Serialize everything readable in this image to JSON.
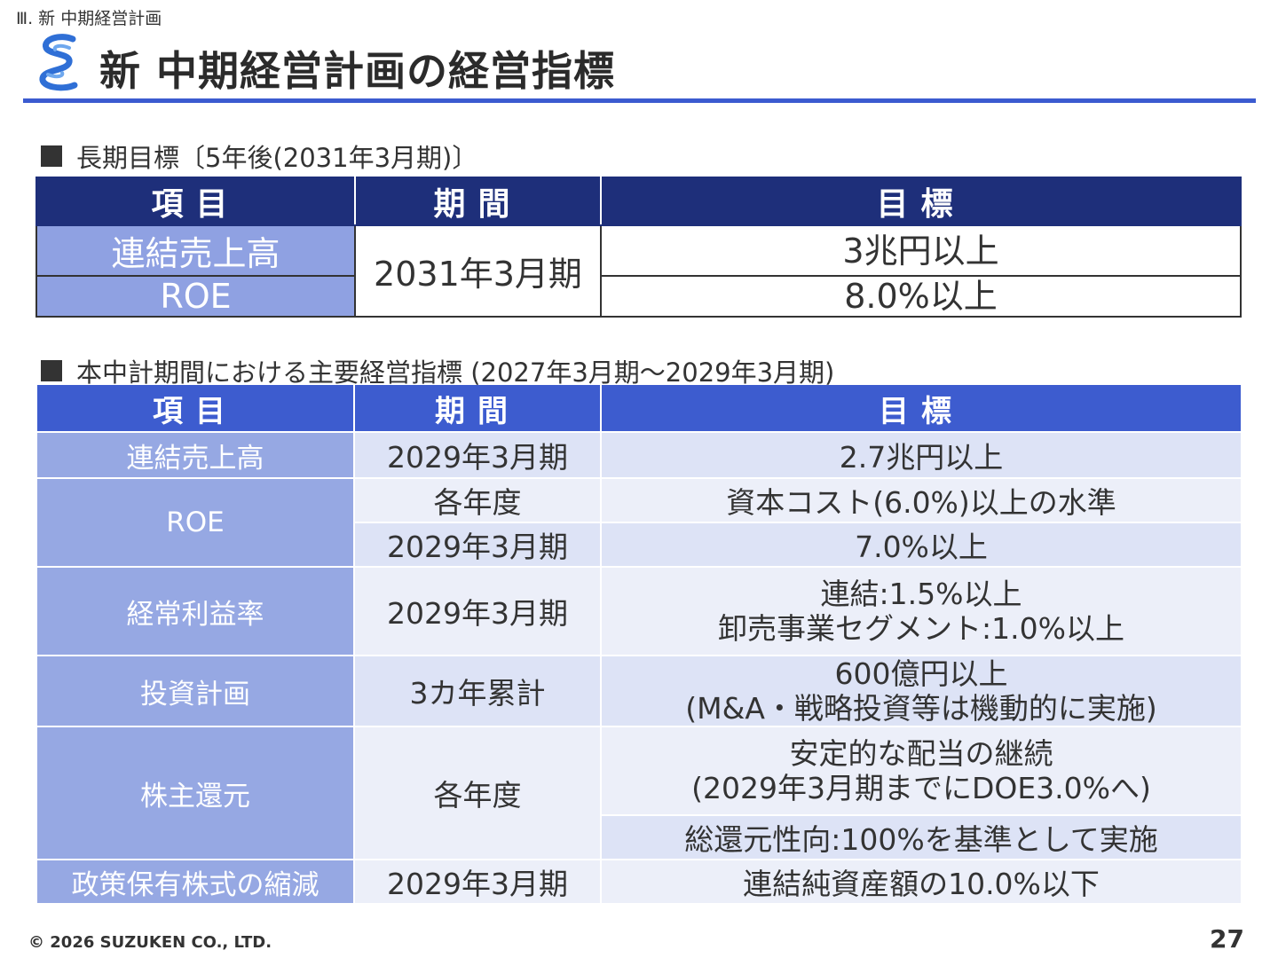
{
  "header": {
    "breadcrumb": "Ⅲ. 新 中期経営計画",
    "title": "新 中期経営計画の経営指標"
  },
  "section1": {
    "heading": "長期目標〔5年後(2031年3月期)〕",
    "columns": [
      "項目",
      "期間",
      "目標"
    ],
    "rows": [
      {
        "item": "連結売上高",
        "period": "2031年3月期",
        "target": "3兆円以上"
      },
      {
        "item": "ROE",
        "period": "2031年3月期",
        "target": "8.0%以上"
      }
    ]
  },
  "section2": {
    "heading": "本中計期間における主要経営指標 (2027年3月期～2029年3月期)",
    "columns": [
      "項目",
      "期間",
      "目標"
    ],
    "rows": {
      "sales": {
        "item": "連結売上高",
        "period": "2029年3月期",
        "target": "2.7兆円以上"
      },
      "roe": {
        "item": "ROE",
        "period_a": "各年度",
        "target_a": "資本コスト(6.0%)以上の水準",
        "period_b": "2029年3月期",
        "target_b": "7.0%以上"
      },
      "ordinary_margin": {
        "item": "経常利益率",
        "period": "2029年3月期",
        "target_line1": "連結:1.5%以上",
        "target_line2": "卸売事業セグメント:1.0%以上"
      },
      "investment": {
        "item": "投資計画",
        "period": "3カ年累計",
        "target_line1": "600億円以上",
        "target_line2": "(M&A・戦略投資等は機動的に実施)"
      },
      "shareholder_return": {
        "item": "株主還元",
        "period": "各年度",
        "target_a_line1": "安定的な配当の継続",
        "target_a_line2": "(2029年3月期までにDOE3.0%へ)",
        "target_b": "総還元性向:100%を基準として実施"
      },
      "cross_shareholdings": {
        "item": "政策保有株式の縮減",
        "period": "2029年3月期",
        "target": "連結純資産額の10.0%以下"
      }
    }
  },
  "footer": {
    "copyright": "© 2026 SUZUKEN CO., LTD.",
    "page_number": "27"
  },
  "colors": {
    "accent": "#3b5bd0",
    "header_dark": "#1e2f7a",
    "header_blue": "#3d5ccf",
    "item_cell": "#96a8e3",
    "row_light": "#eceff9",
    "row_mid": "#dde3f6"
  }
}
